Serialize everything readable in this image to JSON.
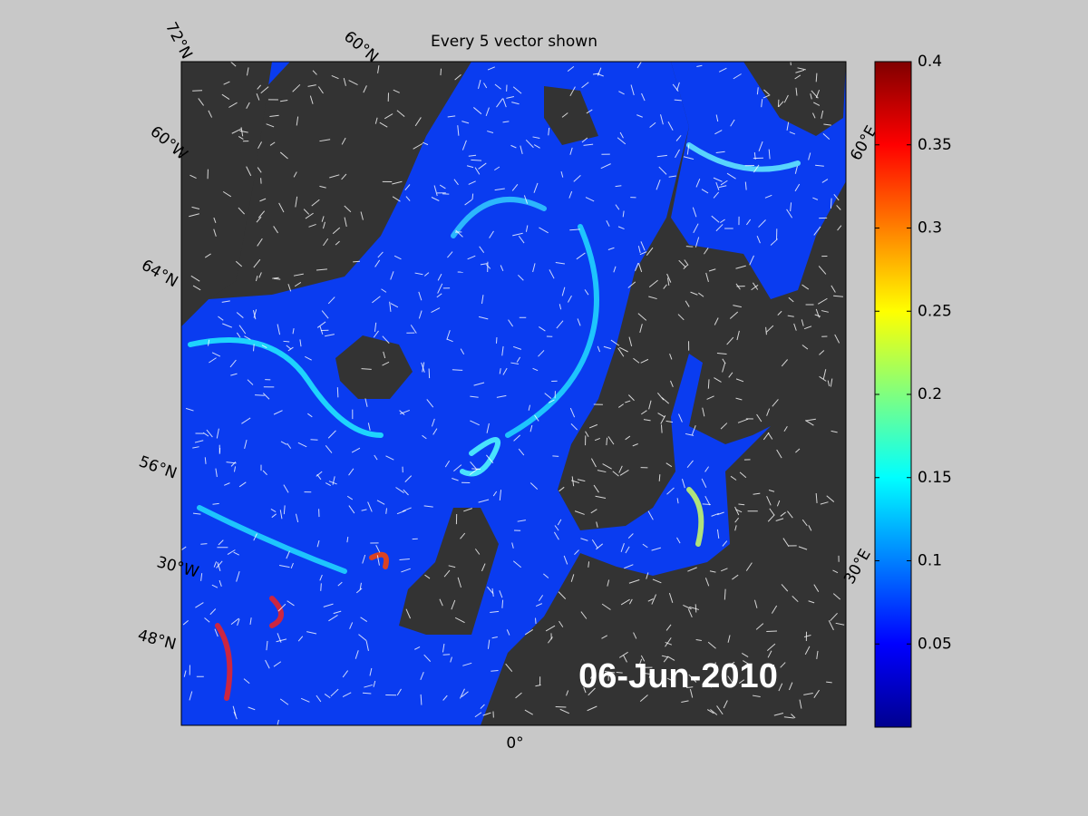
{
  "map": {
    "title": "Every 5 vector shown",
    "date_label": "06-Jun-2010",
    "graticule_labels": [
      "72°N",
      "60°N",
      "60°W",
      "64°N",
      "56°N",
      "30°W",
      "48°N",
      "0°",
      "60°E",
      "30°E"
    ]
  },
  "colorbar": {
    "colormap": "jet",
    "lim": [
      0,
      0.4
    ],
    "ticks": [
      0.05,
      0.1,
      0.15,
      0.2,
      0.25,
      0.3,
      0.35,
      0.4
    ]
  }
}
